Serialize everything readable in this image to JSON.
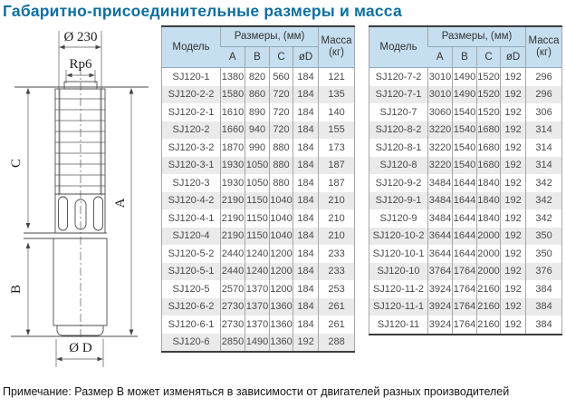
{
  "title": "Габаритно-присоединительные размеры и масса",
  "note": "Примечание: Размер B может изменяться в зависимости от двигателей разных производителей",
  "colors": {
    "accent_title": "#0f6f9e",
    "table_header_bg": "#c6dff0",
    "row_stripe": "#eaeaea",
    "heavy_border": "#3c3c3c"
  },
  "diagram": {
    "labels": {
      "top_diameter": "Ø 230",
      "thread": "Rp6",
      "dim_c": "C",
      "dim_a": "A",
      "dim_b": "B",
      "bottom_diameter": "Ø D"
    }
  },
  "table_header": {
    "model": "Модель",
    "dims": "Размеры, (мм)",
    "col_a": "A",
    "col_b": "B",
    "col_c": "C",
    "col_d": "øD",
    "mass": "Масса",
    "mass_unit": "(кг)"
  },
  "tables": [
    {
      "rows": [
        [
          "SJ120-1",
          "1380",
          "820",
          "560",
          "184",
          "121"
        ],
        [
          "SJ120-2-2",
          "1580",
          "860",
          "720",
          "184",
          "135"
        ],
        [
          "SJ120-2-1",
          "1610",
          "890",
          "720",
          "184",
          "140"
        ],
        [
          "SJ120-2",
          "1660",
          "940",
          "720",
          "184",
          "155"
        ],
        [
          "SJ120-3-2",
          "1870",
          "990",
          "880",
          "184",
          "173"
        ],
        [
          "SJ120-3-1",
          "1930",
          "1050",
          "880",
          "184",
          "187"
        ],
        [
          "SJ120-3",
          "1930",
          "1050",
          "880",
          "184",
          "187"
        ],
        [
          "SJ120-4-2",
          "2190",
          "1150",
          "1040",
          "184",
          "210"
        ],
        [
          "SJ120-4-1",
          "2190",
          "1150",
          "1040",
          "184",
          "210"
        ],
        [
          "SJ120-4",
          "2190",
          "1150",
          "1040",
          "184",
          "210"
        ],
        [
          "SJ120-5-2",
          "2440",
          "1240",
          "1200",
          "184",
          "233"
        ],
        [
          "SJ120-5-1",
          "2440",
          "1240",
          "1200",
          "184",
          "233"
        ],
        [
          "SJ120-5",
          "2570",
          "1370",
          "1200",
          "184",
          "253"
        ],
        [
          "SJ120-6-2",
          "2730",
          "1370",
          "1360",
          "184",
          "261"
        ],
        [
          "SJ120-6-1",
          "2730",
          "1370",
          "1360",
          "184",
          "261"
        ],
        [
          "SJ120-6",
          "2850",
          "1490",
          "1360",
          "192",
          "288"
        ]
      ]
    },
    {
      "rows": [
        [
          "SJ120-7-2",
          "3010",
          "1490",
          "1520",
          "192",
          "296"
        ],
        [
          "SJ120-7-1",
          "3010",
          "1490",
          "1520",
          "192",
          "296"
        ],
        [
          "SJ120-7",
          "3060",
          "1540",
          "1520",
          "192",
          "306"
        ],
        [
          "SJ120-8-2",
          "3220",
          "1540",
          "1680",
          "192",
          "314"
        ],
        [
          "SJ120-8-1",
          "3220",
          "1540",
          "1680",
          "192",
          "314"
        ],
        [
          "SJ120-8",
          "3220",
          "1540",
          "1680",
          "192",
          "314"
        ],
        [
          "SJ120-9-2",
          "3484",
          "1644",
          "1840",
          "192",
          "342"
        ],
        [
          "SJ120-9-1",
          "3484",
          "1644",
          "1840",
          "192",
          "342"
        ],
        [
          "SJ120-9",
          "3484",
          "1644",
          "1840",
          "192",
          "342"
        ],
        [
          "SJ120-10-2",
          "3644",
          "1644",
          "2000",
          "192",
          "350"
        ],
        [
          "SJ120-10-1",
          "3644",
          "1644",
          "2000",
          "192",
          "350"
        ],
        [
          "SJ120-10",
          "3764",
          "1764",
          "2000",
          "192",
          "376"
        ],
        [
          "SJ120-11-2",
          "3924",
          "1764",
          "2160",
          "192",
          "384"
        ],
        [
          "SJ120-11-1",
          "3924",
          "1764",
          "2160",
          "192",
          "384"
        ],
        [
          "SJ120-11",
          "3924",
          "1764",
          "2160",
          "192",
          "384"
        ]
      ]
    }
  ]
}
